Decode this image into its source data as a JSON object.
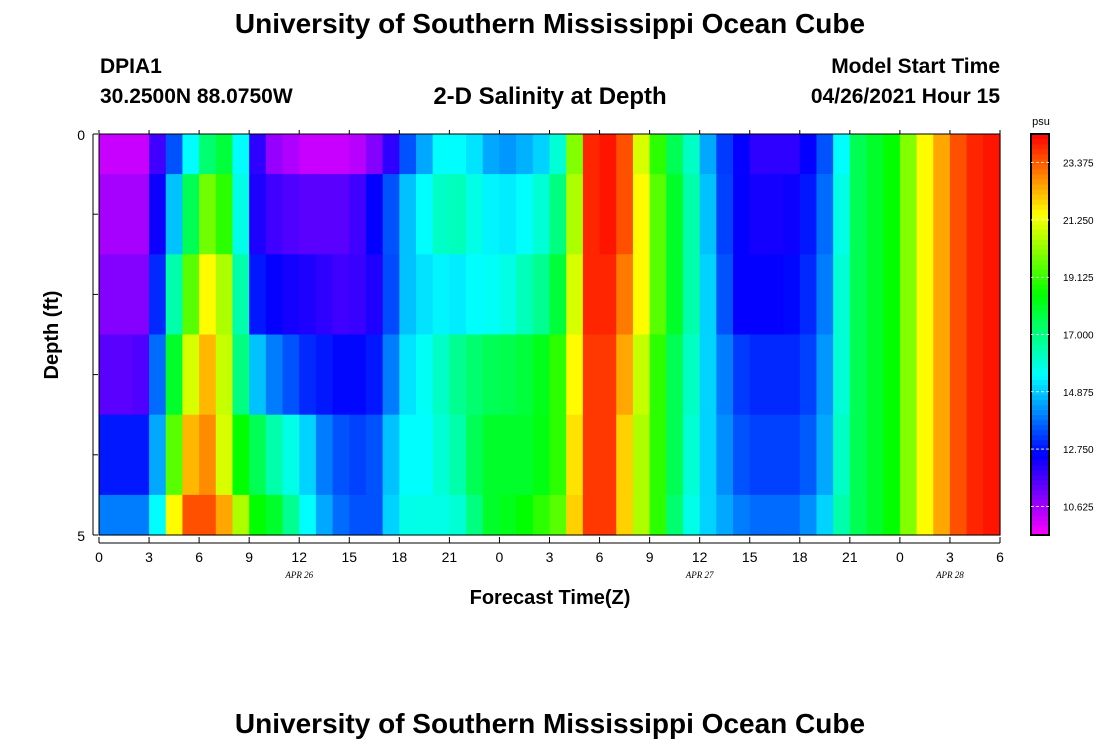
{
  "header": {
    "title": "University of Southern Mississippi Ocean Cube",
    "station_id": "DPIA1",
    "coordinates": "30.2500N  88.0750W",
    "chart_title": "2-D Salinity at Depth",
    "model_start_label": "Model Start Time",
    "model_start_value": "04/26/2021 Hour 15"
  },
  "footer": {
    "title": "University of Southern Mississippi Ocean Cube"
  },
  "chart_data": {
    "type": "heatmap",
    "title": "2-D Salinity at Depth",
    "xlabel": "Forecast Time(Z)",
    "ylabel": "Depth (ft)",
    "x_range_hours": [
      0,
      54
    ],
    "y_range_ft": [
      0,
      5
    ],
    "y_ticks": [
      "0",
      "5"
    ],
    "x_ticks": [
      "0",
      "3",
      "6",
      "9",
      "12",
      "15",
      "18",
      "21",
      "0",
      "3",
      "6",
      "9",
      "12",
      "15",
      "18",
      "21",
      "0",
      "3",
      "6"
    ],
    "date_labels": [
      {
        "label": "APR 26",
        "hour": 12
      },
      {
        "label": "APR 27",
        "hour": 36
      },
      {
        "label": "APR 28",
        "hour": 51
      }
    ],
    "colorbar": {
      "unit": "psu",
      "min": 9.5625,
      "max": 24.4375,
      "ticks": [
        "10.625",
        "12.750",
        "14.875",
        "17.000",
        "19.125",
        "21.250",
        "23.375"
      ],
      "tick_values": [
        10.625,
        12.75,
        14.875,
        17.0,
        19.125,
        21.25,
        23.375
      ]
    },
    "grid": false,
    "depth_layers": [
      "0-0.5 ft",
      "0.5-1.5 ft",
      "1.5-2.5 ft",
      "2.5-3.5 ft",
      "3.5-4.5 ft",
      "4.5-5 ft"
    ],
    "column_hours": [
      0,
      1,
      2,
      3,
      4,
      5,
      6,
      7,
      8,
      9,
      10,
      11,
      12,
      13,
      14,
      15,
      16,
      17,
      18,
      19,
      20,
      21,
      22,
      23,
      24,
      25,
      26,
      27,
      28,
      29,
      30,
      31,
      32,
      33,
      34,
      35,
      36,
      37,
      38,
      39,
      40,
      41,
      42,
      43,
      44,
      45,
      46,
      47,
      48,
      49,
      50,
      51,
      52,
      53
    ],
    "salinity": [
      [
        10.2,
        10.2,
        10.2,
        11.8,
        13.5,
        15.5,
        17.2,
        17.8,
        15.5,
        12.0,
        10.8,
        10.5,
        10.2,
        10.2,
        10.2,
        10.4,
        11.0,
        12.0,
        13.5,
        14.5,
        15.5,
        15.5,
        15.2,
        14.5,
        14.3,
        14.6,
        15.0,
        16.0,
        20.0,
        24.0,
        24.2,
        23.5,
        21.0,
        19.0,
        17.5,
        16.2,
        14.5,
        13.2,
        12.5,
        12.0,
        12.0,
        12.0,
        12.5,
        13.5,
        15.5,
        17.5,
        18.0,
        18.5,
        20.0,
        21.5,
        22.5,
        23.5,
        24.0,
        24.2
      ],
      [
        10.6,
        10.6,
        10.6,
        12.4,
        14.8,
        17.5,
        19.8,
        19.0,
        15.8,
        12.2,
        11.8,
        11.6,
        11.5,
        11.5,
        11.5,
        11.8,
        12.5,
        13.5,
        14.8,
        15.5,
        16.2,
        16.3,
        15.8,
        15.4,
        15.3,
        15.5,
        16.0,
        17.0,
        20.5,
        24.0,
        24.2,
        23.5,
        21.5,
        19.5,
        18.0,
        16.5,
        14.8,
        13.3,
        12.5,
        12.3,
        12.3,
        12.4,
        12.8,
        13.8,
        15.8,
        17.5,
        18.0,
        18.5,
        20.0,
        21.5,
        22.5,
        23.5,
        24.0,
        24.2
      ],
      [
        11.0,
        11.0,
        11.0,
        13.0,
        16.5,
        19.5,
        21.5,
        20.5,
        16.5,
        12.8,
        12.5,
        12.3,
        12.2,
        12.0,
        11.8,
        11.9,
        12.2,
        13.4,
        14.8,
        15.2,
        15.4,
        15.3,
        15.5,
        15.6,
        15.8,
        16.3,
        16.8,
        17.8,
        21.0,
        24.0,
        24.0,
        23.0,
        21.5,
        19.5,
        18.0,
        16.5,
        15.0,
        13.5,
        12.5,
        12.5,
        12.5,
        12.6,
        13.0,
        14.0,
        16.0,
        17.5,
        18.0,
        18.5,
        20.0,
        21.5,
        22.5,
        23.5,
        24.0,
        24.2
      ],
      [
        11.5,
        11.5,
        11.6,
        13.8,
        18.0,
        21.0,
        22.3,
        20.8,
        17.0,
        14.8,
        14.0,
        13.5,
        13.0,
        12.8,
        12.6,
        12.6,
        12.8,
        14.0,
        15.2,
        15.6,
        16.2,
        16.8,
        17.2,
        17.5,
        17.6,
        17.8,
        18.2,
        19.0,
        21.5,
        23.8,
        23.8,
        22.5,
        20.8,
        19.0,
        17.5,
        16.2,
        15.0,
        14.0,
        13.2,
        13.0,
        13.0,
        13.0,
        13.3,
        14.3,
        16.0,
        17.5,
        18.0,
        18.5,
        20.0,
        21.5,
        22.5,
        23.5,
        24.0,
        24.2
      ],
      [
        12.8,
        12.8,
        12.8,
        14.5,
        19.5,
        22.3,
        22.8,
        21.0,
        18.5,
        17.5,
        16.5,
        15.8,
        15.0,
        14.0,
        13.5,
        13.3,
        13.5,
        14.8,
        15.5,
        15.5,
        16.0,
        16.5,
        17.5,
        18.0,
        18.0,
        18.0,
        18.3,
        19.0,
        21.8,
        23.8,
        23.8,
        22.0,
        20.5,
        19.0,
        17.5,
        16.0,
        15.0,
        14.2,
        13.5,
        13.3,
        13.3,
        13.3,
        13.6,
        14.5,
        16.2,
        17.5,
        18.0,
        18.5,
        20.0,
        21.5,
        22.5,
        23.5,
        24.0,
        24.2
      ],
      [
        14.0,
        14.0,
        14.0,
        15.5,
        21.5,
        23.5,
        23.5,
        22.5,
        20.5,
        18.5,
        18.0,
        16.8,
        15.5,
        14.5,
        13.8,
        13.5,
        13.5,
        15.0,
        15.8,
        15.8,
        15.8,
        16.0,
        17.0,
        18.0,
        18.2,
        18.5,
        19.0,
        19.5,
        22.0,
        23.8,
        23.8,
        22.0,
        20.5,
        19.0,
        17.2,
        15.8,
        15.0,
        14.5,
        14.0,
        13.8,
        13.8,
        13.8,
        14.2,
        15.0,
        16.5,
        17.5,
        18.0,
        18.5,
        20.0,
        21.5,
        22.5,
        23.5,
        24.0,
        24.2
      ]
    ]
  }
}
